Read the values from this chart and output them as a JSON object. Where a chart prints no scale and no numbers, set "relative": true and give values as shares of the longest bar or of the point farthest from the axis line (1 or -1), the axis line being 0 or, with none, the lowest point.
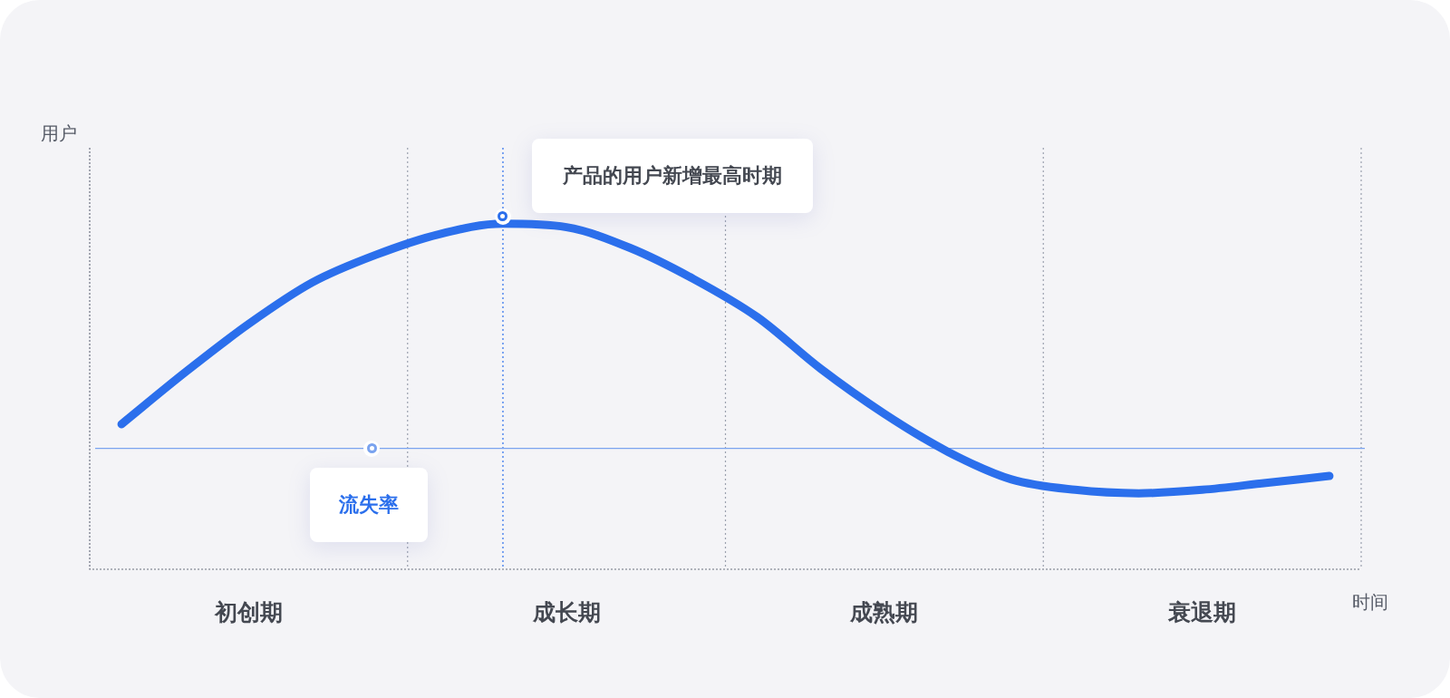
{
  "chart_data": {
    "type": "line",
    "relative": true,
    "ylabel": "用户",
    "xlabel": "时间",
    "categories": [
      null,
      null,
      "初创期",
      null,
      null,
      null,
      null,
      "成长期",
      null,
      null,
      null,
      null,
      "成熟期",
      null,
      null,
      null,
      null,
      "衰退期",
      null,
      null
    ],
    "series": [
      {
        "color": "#2b6fec",
        "values": [
          0.42,
          0.57,
          0.71,
          0.83,
          0.91,
          0.97,
          1.0,
          0.99,
          0.93,
          0.84,
          0.73,
          0.58,
          0.45,
          0.34,
          0.26,
          0.23,
          0.22,
          0.23,
          0.25,
          0.27
        ]
      }
    ],
    "ref_lines": [
      {
        "axis": "y",
        "value": 0.35,
        "label": "流失率",
        "color": "#7aa3ef",
        "line_style": "solid"
      }
    ],
    "annotations": [
      "产品的用户新增最高时期"
    ],
    "grid": false,
    "legend": false,
    "marker": "none",
    "line_style": "solid"
  }
}
